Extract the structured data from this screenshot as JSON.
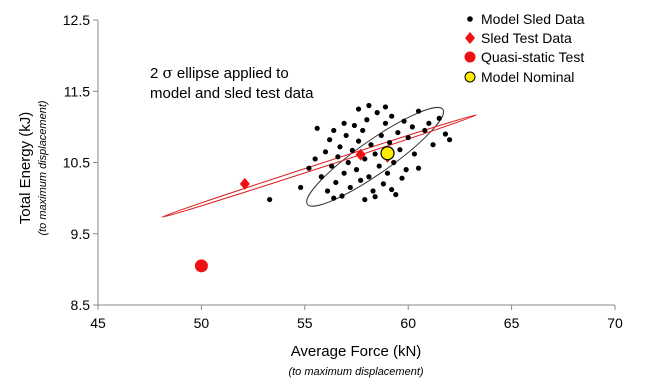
{
  "chart_data": {
    "type": "scatter",
    "xlabel": "Average Force (kN)",
    "xlabel_note": "(to maximum displacement)",
    "ylabel": "Total Energy (kJ)",
    "ylabel_note": "(to maximum displacement)",
    "xlim": [
      45,
      70
    ],
    "ylim": [
      8.5,
      12.5
    ],
    "x_ticks": [
      "45",
      "50",
      "55",
      "60",
      "65",
      "70"
    ],
    "y_ticks": [
      "12.5",
      "11.5",
      "10.5",
      "9.5",
      "8.5"
    ],
    "x_tick_values": [
      45,
      50,
      55,
      60,
      65,
      70
    ],
    "y_tick_values": [
      12.5,
      11.5,
      10.5,
      9.5,
      8.5
    ],
    "grid": false,
    "legend_position": "top-right",
    "annotation": {
      "line1_prefix": "2 ",
      "sigma": "σ",
      "line1_suffix": " ellipse applied to",
      "line2": "model and sled test data"
    },
    "series": [
      {
        "name": "Model Sled Data",
        "marker": "dot",
        "color": "#000000",
        "points": [
          [
            53.3,
            9.98
          ],
          [
            54.8,
            10.15
          ],
          [
            55.2,
            10.42
          ],
          [
            55.5,
            10.55
          ],
          [
            55.8,
            10.3
          ],
          [
            56.0,
            10.65
          ],
          [
            56.1,
            10.1
          ],
          [
            56.2,
            10.82
          ],
          [
            56.3,
            10.45
          ],
          [
            56.4,
            10.95
          ],
          [
            56.5,
            10.22
          ],
          [
            56.6,
            10.58
          ],
          [
            56.7,
            10.72
          ],
          [
            56.8,
            10.03
          ],
          [
            56.9,
            10.35
          ],
          [
            57.0,
            10.88
          ],
          [
            57.1,
            10.5
          ],
          [
            57.2,
            10.15
          ],
          [
            57.3,
            10.67
          ],
          [
            57.4,
            11.02
          ],
          [
            57.5,
            10.4
          ],
          [
            57.6,
            10.8
          ],
          [
            57.7,
            10.25
          ],
          [
            57.8,
            10.95
          ],
          [
            57.9,
            10.55
          ],
          [
            58.0,
            11.1
          ],
          [
            58.1,
            10.3
          ],
          [
            58.2,
            10.75
          ],
          [
            58.3,
            10.1
          ],
          [
            58.4,
            10.62
          ],
          [
            58.5,
            11.2
          ],
          [
            58.6,
            10.45
          ],
          [
            58.7,
            10.88
          ],
          [
            58.8,
            10.2
          ],
          [
            58.9,
            11.05
          ],
          [
            59.0,
            10.35
          ],
          [
            59.1,
            10.78
          ],
          [
            59.2,
            11.15
          ],
          [
            59.3,
            10.5
          ],
          [
            59.4,
            10.05
          ],
          [
            59.5,
            10.92
          ],
          [
            59.6,
            10.68
          ],
          [
            59.7,
            10.28
          ],
          [
            59.8,
            11.08
          ],
          [
            60.0,
            10.85
          ],
          [
            60.2,
            11.0
          ],
          [
            60.5,
            11.22
          ],
          [
            60.8,
            10.95
          ],
          [
            61.0,
            11.05
          ],
          [
            61.2,
            10.75
          ],
          [
            61.5,
            11.12
          ],
          [
            61.8,
            10.9
          ],
          [
            62.0,
            10.82
          ],
          [
            60.3,
            10.62
          ],
          [
            59.9,
            10.4
          ],
          [
            57.6,
            11.25
          ],
          [
            58.1,
            11.3
          ],
          [
            58.9,
            11.28
          ],
          [
            56.9,
            11.05
          ],
          [
            55.6,
            10.98
          ],
          [
            57.9,
            9.98
          ],
          [
            58.4,
            10.02
          ],
          [
            56.4,
            10.0
          ],
          [
            59.2,
            10.12
          ],
          [
            60.5,
            10.42
          ]
        ]
      },
      {
        "name": "Sled Test Data",
        "marker": "diamond",
        "color": "#ee1111",
        "points": [
          [
            52.1,
            10.2
          ],
          [
            57.7,
            10.61
          ],
          [
            59.0,
            10.58
          ]
        ]
      },
      {
        "name": "Quasi-static Test",
        "marker": "circle",
        "color": "#ee1111",
        "points": [
          [
            50.0,
            9.05
          ]
        ]
      },
      {
        "name": "Model Nominal",
        "marker": "ring",
        "color": "#ffee00",
        "points": [
          [
            59.0,
            10.63
          ]
        ]
      }
    ],
    "ellipses": [
      {
        "role": "model",
        "color": "#333333",
        "cx": 58.4,
        "cy": 10.58,
        "a": 4.0,
        "b": 0.8,
        "rotation_deg": 35
      },
      {
        "role": "sled test",
        "color": "#dd2222",
        "cx": 55.7,
        "cy": 10.45,
        "a": 8.0,
        "b": 0.1,
        "rotation_deg": 18
      }
    ]
  }
}
